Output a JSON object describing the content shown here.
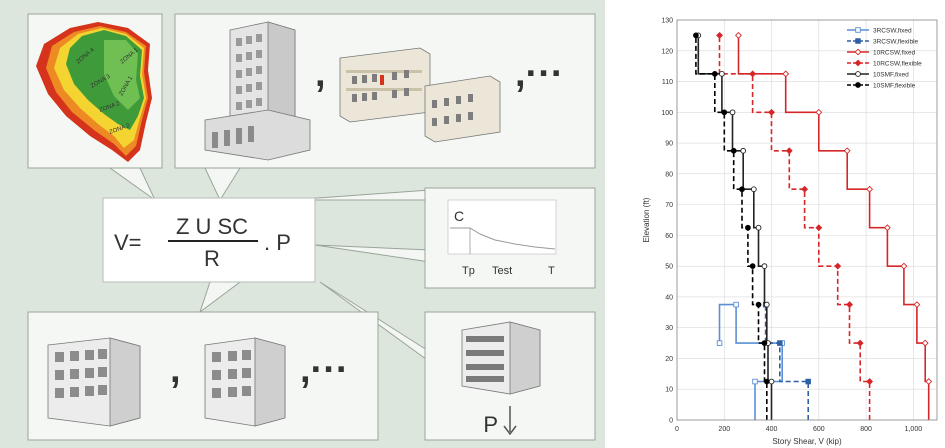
{
  "diagram": {
    "formula": {
      "lhs": "V=",
      "numerator": "Z U SC",
      "denominator": "R",
      "tail": ". P"
    },
    "separator_top_1": ",",
    "separator_top_2": ",···",
    "separator_bottom_1": ",",
    "separator_bottom_2": ",···",
    "spectrum": {
      "y_label": "C",
      "tick_1": "Tp",
      "tick_2": "Test",
      "x_label": "T"
    },
    "weight_label": "P",
    "map_zone_labels": [
      "ZONA 4",
      "ZONA 3",
      "ZONA 2",
      "ZONA 1",
      "ZONA 1",
      "ZONA 2"
    ],
    "colors": {
      "panel_bg": "#dde6dc",
      "map_green": "#3f9b3a",
      "map_yellow": "#f4d430",
      "map_orange": "#ee8a23",
      "map_red": "#d6331c"
    }
  },
  "chart_data": {
    "type": "line",
    "xlabel": "Story Shear, V (kip)",
    "ylabel": "Elevation (ft)",
    "xlim": [
      0,
      1100
    ],
    "ylim": [
      0,
      130
    ],
    "xticks": [
      "0",
      "200",
      "400",
      "600",
      "800",
      "1,000"
    ],
    "yticks": [
      "0",
      "10",
      "20",
      "30",
      "40",
      "50",
      "60",
      "70",
      "80",
      "90",
      "100",
      "110",
      "120",
      "130"
    ],
    "grid": true,
    "legend_position": "top-right",
    "series": [
      {
        "name": "3RCSW,fixed",
        "color": "#5b8fd6",
        "dashed": false,
        "marker": "open-square",
        "x": [
          330,
          330,
          445,
          445,
          250,
          250,
          180,
          180
        ],
        "y": [
          0,
          12.5,
          12.5,
          25,
          25,
          37.5,
          37.5,
          25
        ]
      },
      {
        "name": "3RCSW,flexible",
        "color": "#2f5fa6",
        "dashed": true,
        "marker": "filled-square",
        "x": [
          555,
          555,
          435,
          435,
          375,
          375
        ],
        "y": [
          0,
          12.5,
          12.5,
          25,
          25,
          37.5
        ]
      },
      {
        "name": "10RCSW,fixed",
        "color": "#d62728",
        "dashed": false,
        "marker": "open-diamond",
        "x": [
          1065,
          1065,
          1050,
          1050,
          1015,
          1015,
          960,
          960,
          890,
          890,
          815,
          815,
          720,
          720,
          600,
          600,
          460,
          460,
          260,
          260
        ],
        "y": [
          0,
          12.5,
          12.5,
          25,
          25,
          37.5,
          37.5,
          50,
          50,
          62.5,
          62.5,
          75,
          75,
          87.5,
          87.5,
          100,
          100,
          112.5,
          112.5,
          125
        ]
      },
      {
        "name": "10RCSW,flexible",
        "color": "#d62728",
        "dashed": true,
        "marker": "filled-diamond",
        "x": [
          815,
          815,
          775,
          775,
          730,
          730,
          680,
          680,
          600,
          600,
          540,
          540,
          475,
          475,
          400,
          400,
          320,
          320,
          180,
          180
        ],
        "y": [
          0,
          12.5,
          12.5,
          25,
          25,
          37.5,
          37.5,
          50,
          50,
          62.5,
          62.5,
          75,
          75,
          87.5,
          87.5,
          100,
          100,
          112.5,
          112.5,
          125
        ]
      },
      {
        "name": "10SMF,fixed",
        "color": "#222222",
        "dashed": false,
        "marker": "open-circle",
        "x": [
          400,
          400,
          385,
          385,
          380,
          380,
          370,
          370,
          345,
          345,
          325,
          325,
          280,
          280,
          235,
          235,
          190,
          190,
          90,
          90
        ],
        "y": [
          0,
          12.5,
          12.5,
          25,
          25,
          37.5,
          37.5,
          50,
          50,
          62.5,
          62.5,
          75,
          75,
          87.5,
          87.5,
          100,
          100,
          112.5,
          112.5,
          125
        ]
      },
      {
        "name": "10SMF,flexible",
        "color": "#000000",
        "dashed": true,
        "marker": "filled-circle",
        "x": [
          380,
          380,
          370,
          370,
          345,
          345,
          320,
          320,
          300,
          300,
          275,
          275,
          240,
          240,
          200,
          200,
          160,
          160,
          80,
          80
        ],
        "y": [
          0,
          12.5,
          12.5,
          25,
          25,
          37.5,
          37.5,
          50,
          50,
          62.5,
          62.5,
          75,
          75,
          87.5,
          87.5,
          100,
          100,
          112.5,
          112.5,
          125
        ]
      }
    ]
  }
}
